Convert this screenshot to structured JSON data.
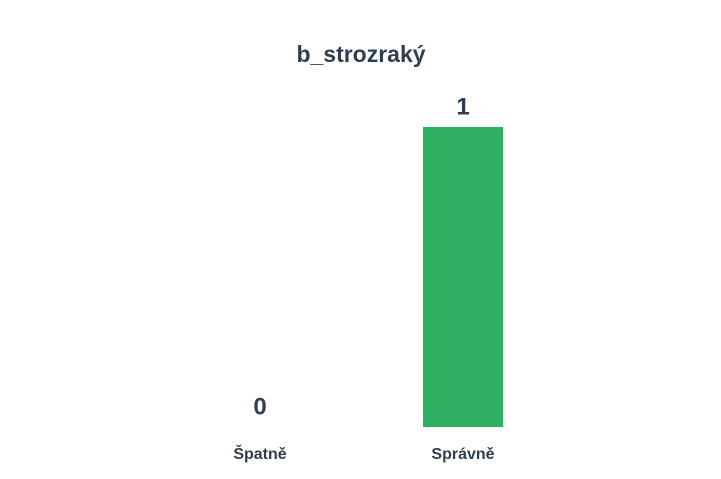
{
  "chart_data": {
    "type": "bar",
    "title": "b_strozraký",
    "categories": [
      "Špatně",
      "Správně"
    ],
    "values": [
      0,
      1
    ],
    "color": "#2eaf62"
  }
}
